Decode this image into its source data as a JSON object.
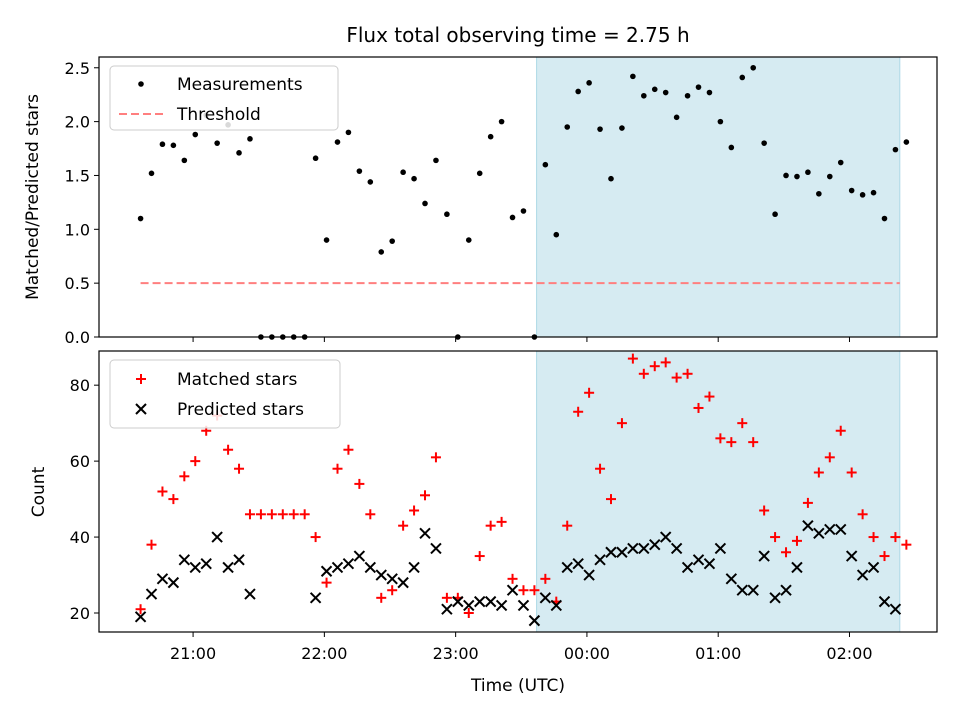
{
  "title": "Flux total observing time = 2.75 h",
  "colors": {
    "measurement": "#000000",
    "threshold": "#ff7f7f",
    "matched": "#ff0000",
    "predicted": "#000000",
    "shade": "#add8e6"
  },
  "chart_data": [
    {
      "type": "scatter",
      "ylabel": "Matched/Predicted stars",
      "ylim": [
        0,
        2.6
      ],
      "yticks": [
        0.0,
        0.5,
        1.0,
        1.5,
        2.0,
        2.5
      ],
      "ytick_labels": [
        "0.0",
        "0.5",
        "1.0",
        "1.5",
        "2.0",
        "2.5"
      ],
      "xlim": [
        "20:17",
        "02:40"
      ],
      "xticks": [
        "21:00",
        "22:00",
        "23:00",
        "00:00",
        "01:00",
        "02:00"
      ],
      "shaded_span": [
        "23:37",
        "02:23"
      ],
      "legend": {
        "placement": "upper left",
        "entries": [
          "Measurements",
          "Threshold"
        ]
      },
      "threshold": {
        "name": "Threshold",
        "value": 0.5,
        "x": [
          "20:36",
          "02:23"
        ]
      },
      "series": [
        {
          "name": "Measurements",
          "x": [
            "20:36",
            "20:41",
            "20:46",
            "20:51",
            "20:56",
            "21:01",
            "21:06",
            "21:11",
            "21:16",
            "21:21",
            "21:26",
            "21:31",
            "21:36",
            "21:41",
            "21:46",
            "21:51",
            "21:56",
            "22:01",
            "22:06",
            "22:11",
            "22:16",
            "22:21",
            "22:26",
            "22:31",
            "22:36",
            "22:41",
            "22:46",
            "22:51",
            "22:56",
            "23:01",
            "23:06",
            "23:11",
            "23:16",
            "23:21",
            "23:26",
            "23:31",
            "23:36",
            "23:41",
            "23:46",
            "23:51",
            "23:56",
            "00:01",
            "00:06",
            "00:11",
            "00:16",
            "00:21",
            "00:26",
            "00:31",
            "00:36",
            "00:41",
            "00:46",
            "00:51",
            "00:56",
            "01:01",
            "01:06",
            "01:11",
            "01:16",
            "01:21",
            "01:26",
            "01:31",
            "01:36",
            "01:41",
            "01:46",
            "01:51",
            "01:56",
            "02:01",
            "02:06",
            "02:11",
            "02:16",
            "02:21",
            "02:26"
          ],
          "y": [
            1.1,
            1.52,
            1.79,
            1.78,
            1.64,
            1.88,
            2.06,
            1.8,
            1.97,
            1.71,
            1.84,
            0.0,
            0.0,
            0.0,
            0.0,
            0.0,
            1.66,
            0.9,
            1.81,
            1.9,
            1.54,
            1.44,
            0.79,
            0.89,
            1.53,
            1.47,
            1.24,
            1.64,
            1.14,
            0.0,
            0.9,
            1.52,
            1.86,
            2.0,
            1.11,
            1.17,
            0.0,
            1.6,
            0.95,
            1.95,
            2.28,
            2.36,
            1.93,
            1.47,
            1.94,
            2.42,
            2.24,
            2.3,
            2.27,
            2.04,
            2.24,
            2.32,
            2.27,
            2.0,
            1.76,
            2.41,
            2.5,
            1.8,
            1.14,
            1.5,
            1.49,
            1.53,
            1.33,
            1.49,
            1.62,
            1.36,
            1.32,
            1.34,
            1.1,
            1.74,
            1.81
          ]
        }
      ]
    },
    {
      "type": "scatter",
      "xlabel": "Time (UTC)",
      "ylabel": "Count",
      "ylim": [
        15,
        89
      ],
      "yticks": [
        20,
        40,
        60,
        80
      ],
      "ytick_labels": [
        "20",
        "40",
        "60",
        "80"
      ],
      "xlim": [
        "20:17",
        "02:40"
      ],
      "xticks": [
        "21:00",
        "22:00",
        "23:00",
        "00:00",
        "01:00",
        "02:00"
      ],
      "xtick_labels": [
        "21:00",
        "22:00",
        "23:00",
        "00:00",
        "01:00",
        "02:00"
      ],
      "shaded_span": [
        "23:37",
        "02:23"
      ],
      "legend": {
        "placement": "upper left",
        "entries": [
          "Matched stars",
          "Predicted stars"
        ]
      },
      "x": [
        "20:36",
        "20:41",
        "20:46",
        "20:51",
        "20:56",
        "21:01",
        "21:06",
        "21:11",
        "21:16",
        "21:21",
        "21:26",
        "21:31",
        "21:36",
        "21:41",
        "21:46",
        "21:51",
        "21:56",
        "22:01",
        "22:06",
        "22:11",
        "22:16",
        "22:21",
        "22:26",
        "22:31",
        "22:36",
        "22:41",
        "22:46",
        "22:51",
        "22:56",
        "23:01",
        "23:06",
        "23:11",
        "23:16",
        "23:21",
        "23:26",
        "23:31",
        "23:36",
        "23:41",
        "23:46",
        "23:51",
        "23:56",
        "00:01",
        "00:06",
        "00:11",
        "00:16",
        "00:21",
        "00:26",
        "00:31",
        "00:36",
        "00:41",
        "00:46",
        "00:51",
        "00:56",
        "01:01",
        "01:06",
        "01:11",
        "01:16",
        "01:21",
        "01:26",
        "01:31",
        "01:36",
        "01:41",
        "01:46",
        "01:51",
        "01:56",
        "02:01",
        "02:06",
        "02:11",
        "02:16",
        "02:21",
        "02:26"
      ],
      "series": [
        {
          "name": "Matched stars",
          "marker": "plus",
          "values": [
            21,
            38,
            52,
            50,
            56,
            60,
            68,
            72,
            63,
            58,
            46,
            46,
            46,
            46,
            46,
            46,
            40,
            28,
            58,
            63,
            54,
            46,
            24,
            26,
            43,
            47,
            51,
            61,
            24,
            24,
            20,
            35,
            43,
            44,
            29,
            26,
            26,
            29,
            23,
            43,
            73,
            78,
            58,
            50,
            70,
            87,
            83,
            85,
            86,
            82,
            83,
            74,
            77,
            66,
            65,
            70,
            65,
            47,
            40,
            36,
            39,
            49,
            57,
            61,
            68,
            57,
            46,
            40,
            35,
            40,
            38
          ]
        },
        {
          "name": "Predicted stars",
          "marker": "x",
          "values": [
            19,
            25,
            29,
            28,
            34,
            32,
            33,
            40,
            32,
            34,
            25,
            null,
            null,
            null,
            null,
            null,
            24,
            31,
            32,
            33,
            35,
            32,
            30,
            29,
            28,
            32,
            41,
            37,
            21,
            23,
            22,
            23,
            23,
            22,
            26,
            22,
            18,
            24,
            22,
            32,
            33,
            30,
            34,
            36,
            36,
            37,
            37,
            38,
            40,
            37,
            32,
            34,
            33,
            37,
            29,
            26,
            26,
            35,
            24,
            26,
            32,
            43,
            41,
            42,
            42,
            35,
            30,
            32,
            23,
            21,
            null
          ]
        }
      ]
    }
  ]
}
